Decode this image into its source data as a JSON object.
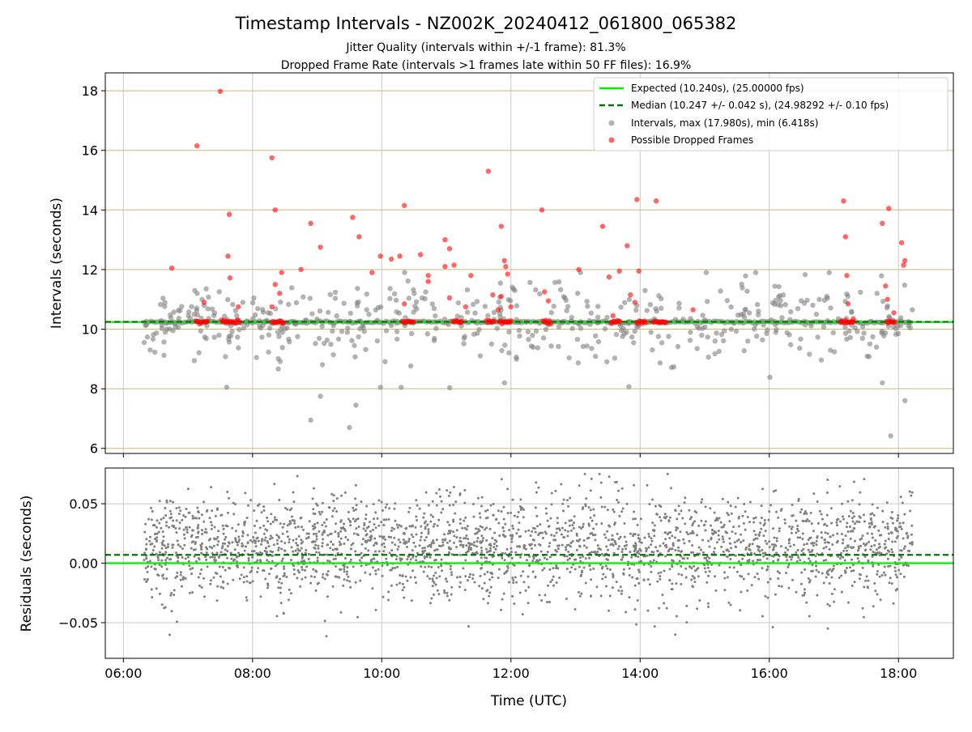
{
  "figure": {
    "title": "Timestamp Intervals - NZ002K_20240412_061800_065382",
    "subtitle_1": "Jitter Quality (intervals within +/-1 frame): 81.3%",
    "subtitle_2": "Dropped Frame Rate (intervals >1 frames late within 50 FF files): 16.9%"
  },
  "colors": {
    "expected_line": "#00ee00",
    "median_line": "#007700",
    "intervals_points": "#808080",
    "dropped_points": "#ff0000",
    "h_grid_top": "#d2b779",
    "grid": "#c8c8c8"
  },
  "chart_data": [
    {
      "type": "scatter",
      "ylabel": "Intervals (seconds)",
      "xlim": [
        5.72,
        18.85
      ],
      "ylim": [
        5.83,
        18.6
      ],
      "yticks": [
        6,
        8,
        10,
        12,
        14,
        16,
        18
      ],
      "grid": true,
      "legend_position": "top-right",
      "expected_interval": 10.24,
      "median_interval": 10.247,
      "series": [
        {
          "name": "Expected (10.240s), (25.00000 fps)",
          "kind": "line",
          "style": "solid"
        },
        {
          "name": "Median (10.247 +/- 0.042 s), (24.98292 +/- 0.10 fps)",
          "kind": "line",
          "style": "dashed"
        },
        {
          "name": "Intervals, max (17.980s), min (6.418s)",
          "kind": "scatter",
          "max": 17.98,
          "min": 6.418
        },
        {
          "name": "Possible Dropped Frames",
          "kind": "scatter",
          "points": [
            [
              7.14,
              16.15
            ],
            [
              7.5,
              17.98
            ],
            [
              7.64,
              13.85
            ],
            [
              7.62,
              12.45
            ],
            [
              7.65,
              11.72
            ],
            [
              6.75,
              12.05
            ],
            [
              7.25,
              10.9
            ],
            [
              7.78,
              10.75
            ],
            [
              8.3,
              15.75
            ],
            [
              8.35,
              14.0
            ],
            [
              8.45,
              11.9
            ],
            [
              8.35,
              11.5
            ],
            [
              8.42,
              11.2
            ],
            [
              8.3,
              10.75
            ],
            [
              8.75,
              12.0
            ],
            [
              8.9,
              13.55
            ],
            [
              9.05,
              12.75
            ],
            [
              9.55,
              13.75
            ],
            [
              9.65,
              13.1
            ],
            [
              9.85,
              11.9
            ],
            [
              9.98,
              12.45
            ],
            [
              10.15,
              12.35
            ],
            [
              10.28,
              12.45
            ],
            [
              10.35,
              14.15
            ],
            [
              10.35,
              10.85
            ],
            [
              10.6,
              12.5
            ],
            [
              10.72,
              11.8
            ],
            [
              10.72,
              11.6
            ],
            [
              10.98,
              13.0
            ],
            [
              11.05,
              12.7
            ],
            [
              10.98,
              12.1
            ],
            [
              11.12,
              12.15
            ],
            [
              11.05,
              11.05
            ],
            [
              11.3,
              10.75
            ],
            [
              11.38,
              11.8
            ],
            [
              11.65,
              15.3
            ],
            [
              11.72,
              11.15
            ],
            [
              11.85,
              13.45
            ],
            [
              11.9,
              12.3
            ],
            [
              11.92,
              12.1
            ],
            [
              11.95,
              11.85
            ],
            [
              11.85,
              11.1
            ],
            [
              11.8,
              10.65
            ],
            [
              12.0,
              10.75
            ],
            [
              12.48,
              14.0
            ],
            [
              12.52,
              11.25
            ],
            [
              12.58,
              10.95
            ],
            [
              13.05,
              12.0
            ],
            [
              13.42,
              13.45
            ],
            [
              13.52,
              11.75
            ],
            [
              13.58,
              10.45
            ],
            [
              13.68,
              11.95
            ],
            [
              13.8,
              12.8
            ],
            [
              13.95,
              14.35
            ],
            [
              13.98,
              11.95
            ],
            [
              13.85,
              11.15
            ],
            [
              13.92,
              10.9
            ],
            [
              14.25,
              14.3
            ],
            [
              14.82,
              10.65
            ],
            [
              17.15,
              14.3
            ],
            [
              17.18,
              13.1
            ],
            [
              17.2,
              11.8
            ],
            [
              17.22,
              10.85
            ],
            [
              17.75,
              13.55
            ],
            [
              17.85,
              14.05
            ],
            [
              17.8,
              11.45
            ],
            [
              17.83,
              11.0
            ],
            [
              18.05,
              12.9
            ],
            [
              18.1,
              12.3
            ],
            [
              18.08,
              12.15
            ],
            [
              17.93,
              10.55
            ],
            [
              17.3,
              10.35
            ]
          ]
        }
      ]
    },
    {
      "type": "scatter",
      "xlabel": "Time (UTC)",
      "ylabel": "Residuals (seconds)",
      "xlim": [
        5.72,
        18.85
      ],
      "ylim": [
        -0.08,
        0.08
      ],
      "yticks": [
        -0.05,
        0.0,
        0.05
      ],
      "ytick_labels": [
        "−0.05",
        "0.00",
        "0.05"
      ],
      "xticks": [
        6,
        8,
        10,
        12,
        14,
        16,
        18
      ],
      "xtick_labels": [
        "06:00",
        "08:00",
        "10:00",
        "12:00",
        "14:00",
        "16:00",
        "18:00"
      ],
      "grid": true,
      "zero_line": 0.0,
      "median_offset": 0.007,
      "residual_spread": 0.022,
      "time_range": [
        6.32,
        18.22
      ]
    }
  ]
}
